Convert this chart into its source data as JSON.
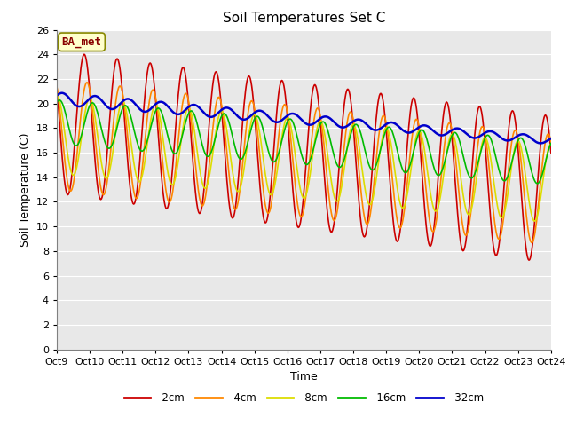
{
  "title": "Soil Temperatures Set C",
  "xlabel": "Time",
  "ylabel": "Soil Temperature (C)",
  "label_box": "BA_met",
  "ylim": [
    0,
    26
  ],
  "background_color": "#ffffff",
  "plot_bg_color": "#e8e8e8",
  "series_colors": [
    "#cc0000",
    "#ff8800",
    "#dddd00",
    "#00bb00",
    "#0000cc"
  ],
  "series_labels": [
    "-2cm",
    "-4cm",
    "-8cm",
    "-16cm",
    "-32cm"
  ],
  "xtick_labels": [
    "Oct 9",
    "Oct 10",
    "Oct 11",
    "Oct 12",
    "Oct 13",
    "Oct 14",
    "Oct 15",
    "Oct 16",
    "Oct 17",
    "Oct 18",
    "Oct 19",
    "Oct 20",
    "Oct 21",
    "Oct 22",
    "Oct 23",
    "Oct 24"
  ]
}
